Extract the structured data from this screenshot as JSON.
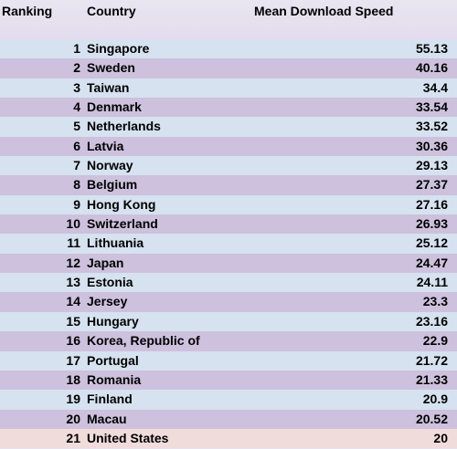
{
  "columns": {
    "ranking": "Ranking",
    "country": "Country",
    "speed": "Mean Download Speed"
  },
  "rows": [
    {
      "rank": "1",
      "country": "Singapore",
      "speed": "55.13"
    },
    {
      "rank": "2",
      "country": "Sweden",
      "speed": "40.16"
    },
    {
      "rank": "3",
      "country": "Taiwan",
      "speed": "34.4"
    },
    {
      "rank": "4",
      "country": "Denmark",
      "speed": "33.54"
    },
    {
      "rank": "5",
      "country": "Netherlands",
      "speed": "33.52"
    },
    {
      "rank": "6",
      "country": "Latvia",
      "speed": "30.36"
    },
    {
      "rank": "7",
      "country": "Norway",
      "speed": "29.13"
    },
    {
      "rank": "8",
      "country": "Belgium",
      "speed": "27.37"
    },
    {
      "rank": "9",
      "country": "Hong Kong",
      "speed": "27.16"
    },
    {
      "rank": "10",
      "country": "Switzerland",
      "speed": "26.93"
    },
    {
      "rank": "11",
      "country": "Lithuania",
      "speed": "25.12"
    },
    {
      "rank": "12",
      "country": "Japan",
      "speed": "24.47"
    },
    {
      "rank": "13",
      "country": "Estonia",
      "speed": "24.11"
    },
    {
      "rank": "14",
      "country": "Jersey",
      "speed": "23.3"
    },
    {
      "rank": "15",
      "country": "Hungary",
      "speed": "23.16"
    },
    {
      "rank": "16",
      "country": "Korea, Republic of",
      "speed": "22.9"
    },
    {
      "rank": "17",
      "country": "Portugal",
      "speed": "21.72"
    },
    {
      "rank": "18",
      "country": "Romania",
      "speed": "21.33"
    },
    {
      "rank": "19",
      "country": "Finland",
      "speed": "20.9"
    },
    {
      "rank": "20",
      "country": "Macau",
      "speed": "20.52"
    },
    {
      "rank": "21",
      "country": "United States",
      "speed": "20"
    }
  ],
  "colors": {
    "row_even": "#d6e2ef",
    "row_odd": "#cdc1dd",
    "row_highlight": "#f1dcdc",
    "header": "#e6e1ef"
  }
}
